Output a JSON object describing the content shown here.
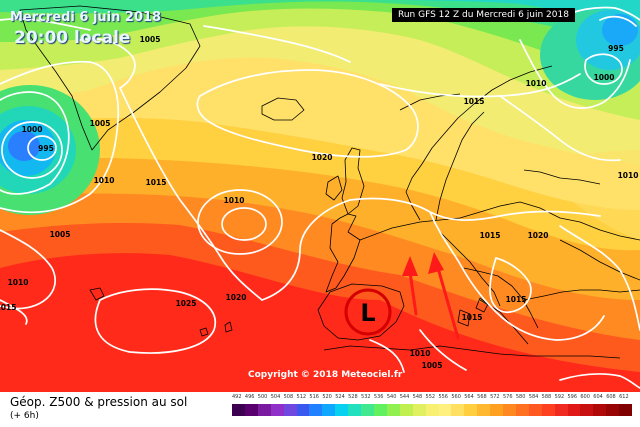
{
  "header": {
    "date": "Mercredi 6 juin 2018",
    "local_time": "20:00 locale",
    "run": "Run GFS 12 Z du Mercredi 6 juin 2018"
  },
  "copyright": "Copyright © 2018 Meteociel.fr",
  "footer": {
    "title": "Géop. Z500 & pression au sol",
    "subtitle": "(+ 6h)"
  },
  "isobar_labels": [
    "1005",
    "1005",
    "1000",
    "995",
    "1010",
    "1015",
    "1005",
    "1010",
    "1015",
    "1010",
    "1025",
    "1020",
    "1020",
    "1015",
    "1015",
    "1010",
    "1000",
    "995",
    "1020",
    "1015",
    "1015",
    "1010",
    "1005",
    "1010"
  ],
  "low_symbol": "L",
  "colors": {
    "arrow": "#ff1a1a",
    "isobar": "#ffffff",
    "low_circle": "#d40000"
  },
  "scale": {
    "labels": [
      "492",
      "496",
      "500",
      "504",
      "508",
      "512",
      "516",
      "520",
      "524",
      "528",
      "532",
      "536",
      "540",
      "544",
      "548",
      "552",
      "556",
      "560",
      "564",
      "568",
      "572",
      "576",
      "580",
      "584",
      "588",
      "592",
      "596",
      "600",
      "604",
      "608",
      "612"
    ],
    "colors": [
      "#3d0050",
      "#5a006e",
      "#7a1aa0",
      "#9030c8",
      "#7048e0",
      "#3858f0",
      "#2080ff",
      "#10a8ff",
      "#08d0f0",
      "#20e0c0",
      "#40e890",
      "#60f060",
      "#90f050",
      "#c0f050",
      "#e0f060",
      "#f8f070",
      "#fff080",
      "#ffe060",
      "#ffcf40",
      "#ffb830",
      "#ffa020",
      "#ff8820",
      "#ff7020",
      "#ff5820",
      "#ff4020",
      "#f02a20",
      "#e01818",
      "#c81010",
      "#b00808",
      "#980404",
      "#800000"
    ]
  }
}
